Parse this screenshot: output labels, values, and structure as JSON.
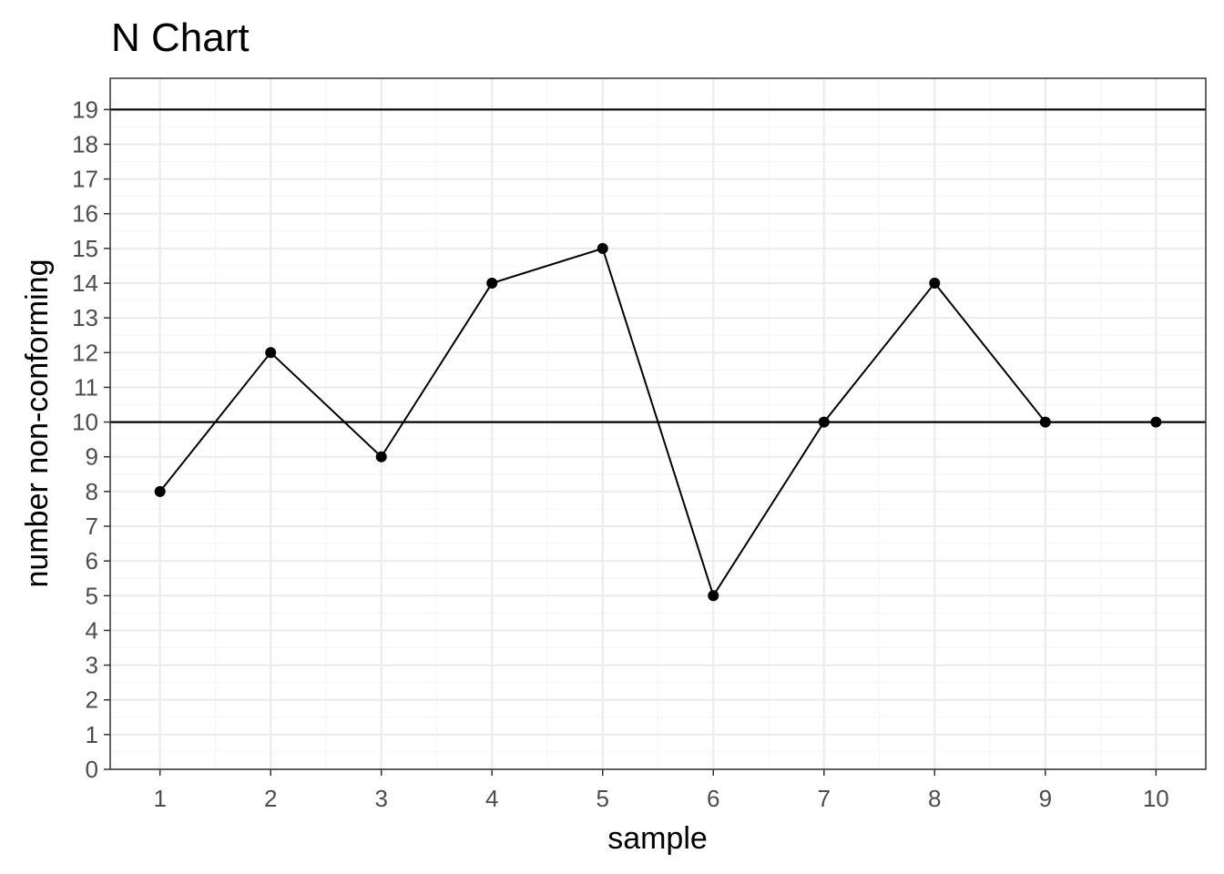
{
  "chart_data": {
    "type": "line",
    "title": "N Chart",
    "xlabel": "sample",
    "ylabel": "number non-conforming",
    "x": [
      1,
      2,
      3,
      4,
      5,
      6,
      7,
      8,
      9,
      10
    ],
    "series": [
      {
        "values": [
          8,
          12,
          9,
          14,
          15,
          5,
          10,
          14,
          10,
          10
        ]
      }
    ],
    "reference_lines": [
      10,
      19
    ],
    "xlim": [
      0.55,
      10.45
    ],
    "ylim": [
      0,
      19.9
    ],
    "x_ticks": [
      "1",
      "2",
      "3",
      "4",
      "5",
      "6",
      "7",
      "8",
      "9",
      "10"
    ],
    "y_ticks": [
      "0",
      "1",
      "2",
      "3",
      "4",
      "5",
      "6",
      "7",
      "8",
      "9",
      "10",
      "11",
      "12",
      "13",
      "14",
      "15",
      "16",
      "17",
      "18",
      "19"
    ],
    "grid": true,
    "legend": "none",
    "colors": {
      "line": "#000000",
      "points": "#000000",
      "grid_major": "#ebebeb",
      "grid_minor": "#f5f5f5",
      "panel_border": "#333333",
      "tick_text": "#4d4d4d"
    }
  }
}
